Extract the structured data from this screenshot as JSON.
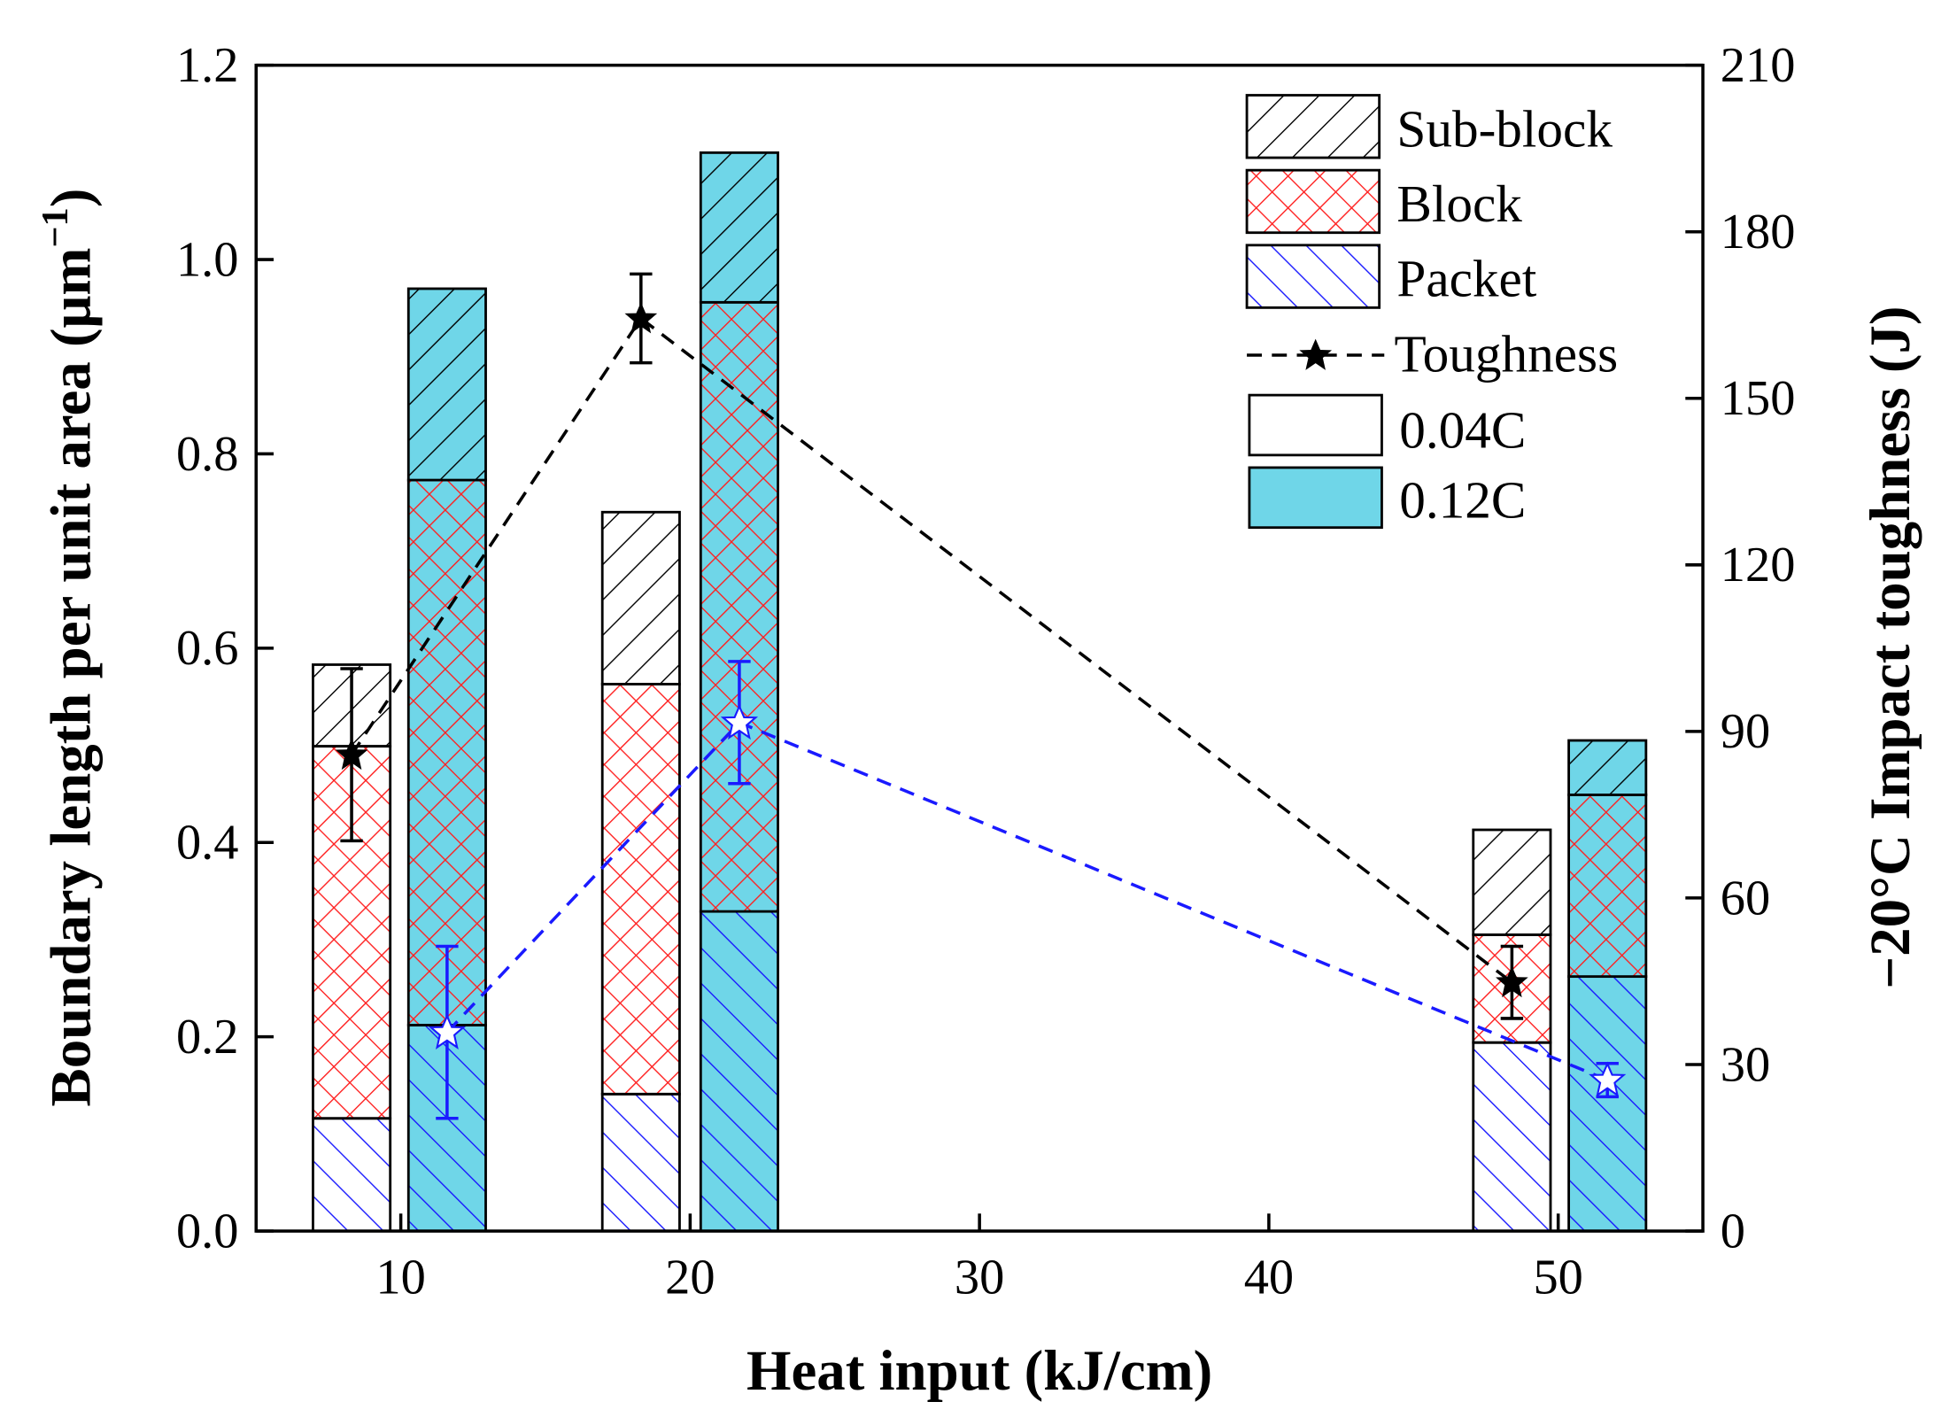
{
  "chart_data": {
    "type": "bar",
    "subtype": "stacked bar with dual-axis line",
    "xlabel": "Heat input (kJ/cm)",
    "ylabel": "Boundary length per unit area (μm⁻¹)",
    "ylabel_main": "Boundary length per unit area (μm",
    "ylabel_sup": "−1",
    "ylabel_end": ")",
    "y2label": "−20°C Impact toughness (J)",
    "xlim": [
      5,
      55
    ],
    "ylim": [
      0,
      1.2
    ],
    "y2lim": [
      0,
      210
    ],
    "xticks": [
      10,
      20,
      30,
      40,
      50
    ],
    "yticks": [
      "0.0",
      "0.2",
      "0.4",
      "0.6",
      "0.8",
      "1.0",
      "1.2"
    ],
    "y2ticks": [
      "0",
      "30",
      "60",
      "90",
      "120",
      "150",
      "180",
      "210"
    ],
    "grid": false,
    "legend_position": "top-right",
    "legend": {
      "sub_block": "Sub-block",
      "block": "Block",
      "packet": "Packet",
      "toughness": "Toughness",
      "c004": "0.04C",
      "c012": "0.12C"
    },
    "colors": {
      "c012_fill": "#6fd6e8",
      "block_hatch": "#ff2020",
      "packet_hatch": "#1a1aff",
      "toughness_012": "#1a1aff"
    },
    "bar_width": 2.67,
    "bars": [
      {
        "steel": "0.04C",
        "heat_input": 10,
        "x": 8.3,
        "packet": 0.116,
        "block_top": 0.499,
        "sub_block_top": 0.583
      },
      {
        "steel": "0.12C",
        "heat_input": 10,
        "x": 11.6,
        "packet": 0.212,
        "block_top": 0.773,
        "sub_block_top": 0.97
      },
      {
        "steel": "0.04C",
        "heat_input": 20,
        "x": 18.3,
        "packet": 0.141,
        "block_top": 0.563,
        "sub_block_top": 0.74
      },
      {
        "steel": "0.12C",
        "heat_input": 20,
        "x": 21.7,
        "packet": 0.329,
        "block_top": 0.956,
        "sub_block_top": 1.11
      },
      {
        "steel": "0.04C",
        "heat_input": 50,
        "x": 48.4,
        "packet": 0.194,
        "block_top": 0.305,
        "sub_block_top": 0.413
      },
      {
        "steel": "0.12C",
        "heat_input": 50,
        "x": 51.7,
        "packet": 0.262,
        "block_top": 0.449,
        "sub_block_top": 0.505
      }
    ],
    "series": [
      {
        "name": "Toughness 0.04C",
        "x": [
          8.3,
          18.3,
          48.4
        ],
        "values": [
          85.8,
          164.4,
          44.8
        ],
        "errors": [
          15.5,
          8,
          6.5
        ]
      },
      {
        "name": "Toughness 0.12C",
        "x": [
          11.6,
          21.7,
          51.7
        ],
        "values": [
          35.8,
          91.6,
          27.2
        ],
        "errors": [
          15.5,
          11,
          3
        ]
      }
    ]
  }
}
